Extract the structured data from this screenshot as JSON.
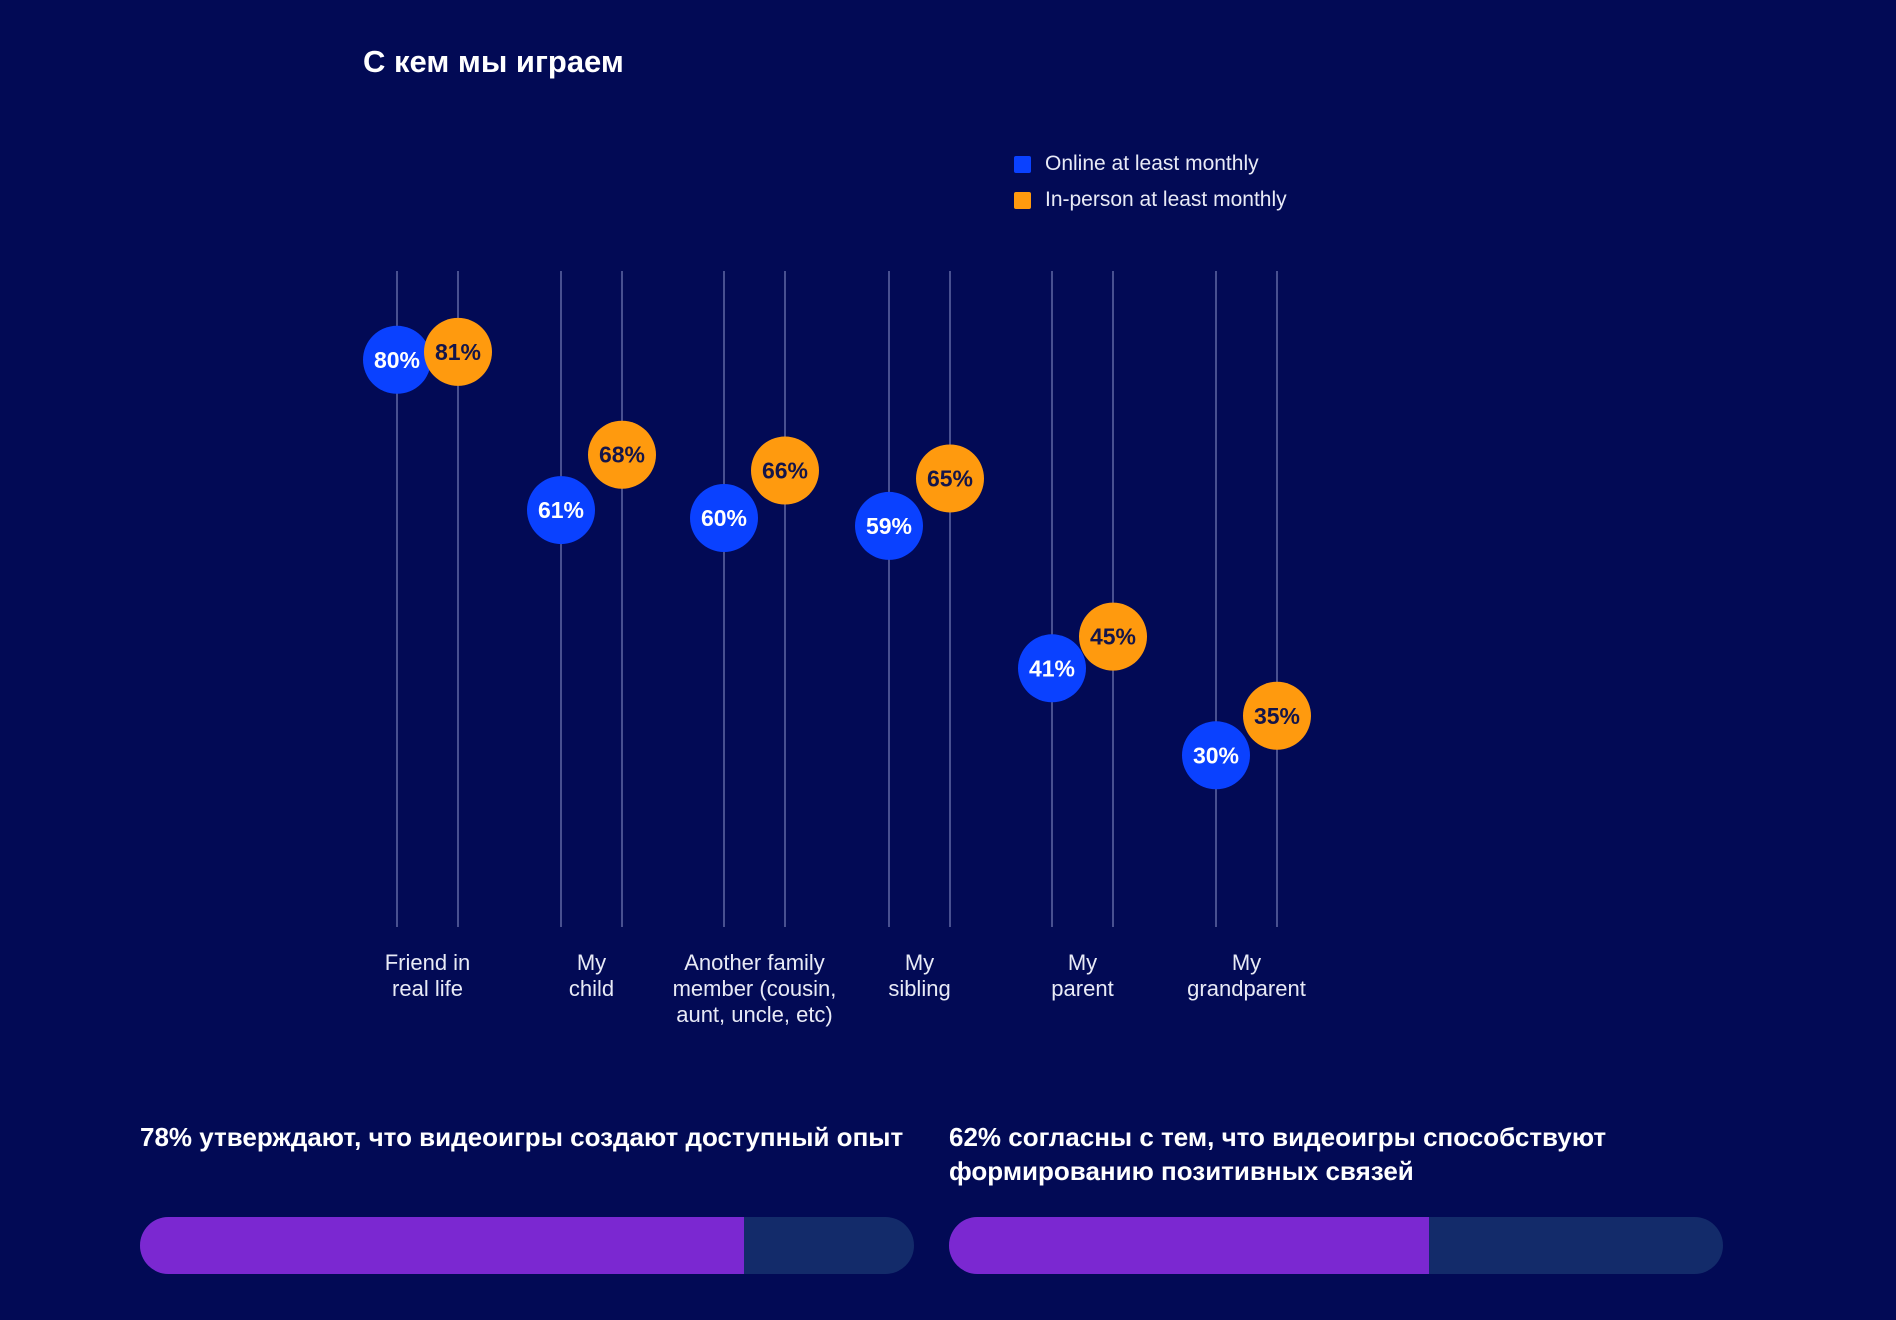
{
  "title": "С кем мы играем",
  "colors": {
    "online": "#0a41ff",
    "inperson": "#ff9a0e",
    "bar_fill": "#7b28d1",
    "bar_track": "#132b6a"
  },
  "chart_data": {
    "type": "scatter",
    "title": "С кем мы играем",
    "legend": [
      "Online at least monthly",
      "In-person at least monthly"
    ],
    "legend_position": "top-right",
    "categories": [
      [
        "Friend in",
        "real life"
      ],
      [
        "My",
        "child"
      ],
      [
        "Another family",
        "member (cousin,",
        "aunt, uncle, etc)"
      ],
      [
        "My",
        "sibling"
      ],
      [
        "My",
        "parent"
      ],
      [
        "My",
        "grandparent"
      ]
    ],
    "series": [
      {
        "name": "Online at least monthly",
        "values": [
          80,
          61,
          60,
          59,
          41,
          30
        ]
      },
      {
        "name": "In-person at least monthly",
        "values": [
          81,
          68,
          66,
          65,
          45,
          35
        ]
      }
    ],
    "unit": "%"
  },
  "stats": [
    {
      "text": "78% утверждают, что видеоигры создают доступный опыт",
      "value": 78
    },
    {
      "text": "62% согласны с тем, что видеоигры способствуют формированию позитивных связей",
      "value": 62
    }
  ]
}
